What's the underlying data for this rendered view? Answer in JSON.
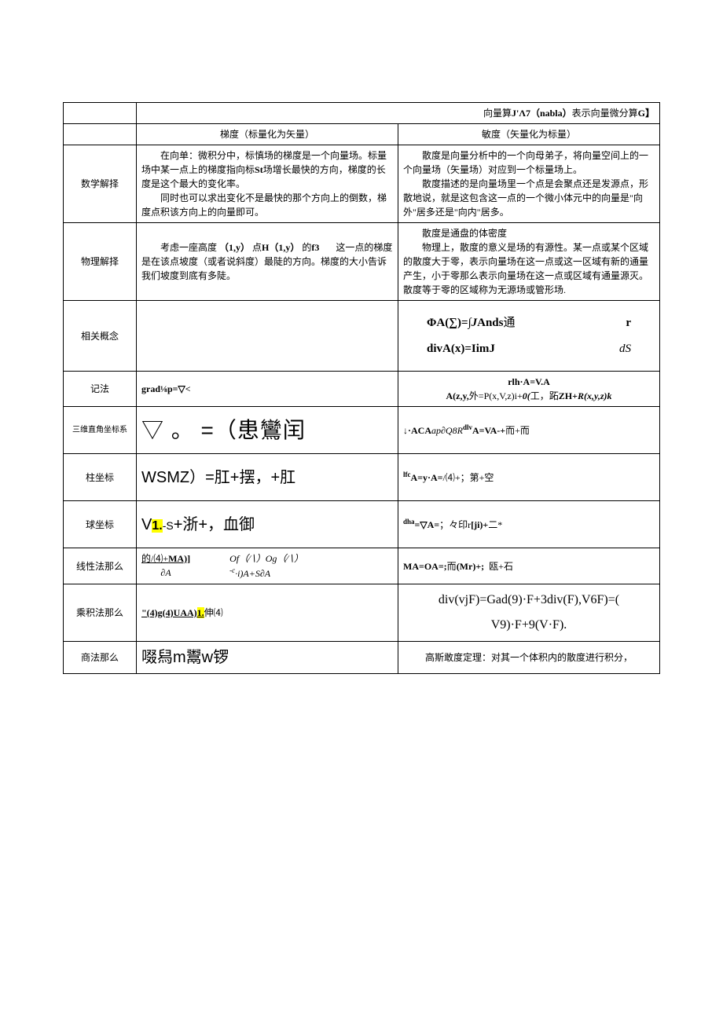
{
  "header": {
    "title_full": "向量算J'Λ7（nabla）表示向量微分算G】",
    "title_prefix": "向量算",
    "title_bold": "J'Λ7（nabla）",
    "title_suffix": "表示向量微分算",
    "title_tail": "G】",
    "col_left": "梯度（标量化为矢量）",
    "col_right": "敏度（矢量化为标量）"
  },
  "rows": {
    "math": {
      "label": "数学解择",
      "left_p1_pre": "在向单：微积分中，标慎场的梯度是一个向量场。标量场中某一点上的梯度指向标",
      "left_p1_bold": "St",
      "left_p1_post": "场增长最快的方向，梯度的长度是这个最大的变化率。",
      "left_p2": "同时也可以求出变化不是最快的那个方向上的倒数，梯度点积该方向上的向量即可。",
      "right_p1": "散度是向量分析中的一个向母弟子，将向量空间上的一个向量场（矢量场）对应到一个标量场上。",
      "right_p2": "散度描述的是向量场里一个点是会聚点还是发源点，形散地说，就是这包含这一点的一个微小体元中的向量是\"向外\"居多还是\"向内\"居多。"
    },
    "physics": {
      "label": "物理解择",
      "left_pre": "考虑一座高度",
      "left_b1": "（1,y）",
      "left_mid1": "点",
      "left_b2": "H（1,y）",
      "left_mid2": "的",
      "left_b3": "f3",
      "left_post": "这一点的梯度是在该点坡度（或者说斜度）最陡的方向。梯度的大小告诉我们坡度到底有多陡。",
      "right_p1": "散度是通盘的体密度",
      "right_p2": "物理上，散度的意义是场的有源性。某一点或某个区域的散度大于零，表示向量场在这一点或这一区域有新的通量产生，小于零那么表示向量场在这一点或区域有通量源灭。散度等于零的区域称为无源场或管形场."
    },
    "related": {
      "label": "相关概念",
      "right_line1_a": "ΦA(∑)=",
      "right_line1_b": "∫J",
      "right_line1_c": "Ands",
      "right_line1_d": "通",
      "right_line1_e": "r",
      "right_line2_a": "divA(x)=IimJ",
      "right_line2_b": "dS"
    },
    "notation": {
      "label": "记法",
      "left": "grad⅛p=▽<",
      "right_l1": "rlh·A=V.A",
      "right_l2_a": "A(z,y,",
      "right_l2_b": "外",
      "right_l2_c": "=P(x,V,z)i+",
      "right_l2_d": "0(",
      "right_l2_e": "工，跖",
      "right_l2_f": "ZH+",
      "right_l2_g": "R(x,y,z)k"
    },
    "cartesian": {
      "label": "三维直角坐标系",
      "left": "▽ 。 =（患鸞闰",
      "right_a": "↓·ACA",
      "right_b": "ap∂Q8R",
      "right_c": "dlv",
      "right_d": "A=VA-+",
      "right_e": "而+而"
    },
    "cylindrical": {
      "label": "柱坐标",
      "left": "WSMZ）=肛+摆，+肛",
      "right_a": "lfc",
      "right_b": "A=y·A=",
      "right_c": "/⑷+；第+空"
    },
    "spherical": {
      "label": "球坐标",
      "left_a": "V",
      "left_hl": "1.",
      "left_b": "-S",
      "left_c": "+浙+，血御",
      "right_a": "dha",
      "right_b": "=▽",
      "right_c": "A=",
      "right_d": "；々印r",
      "right_e": "[ji)+",
      "right_f": "二*"
    },
    "linear": {
      "label": "线性法那么",
      "left_u": "的/⑷+MA)]",
      "left_top": "Of（∕∖）Og（∕∖）",
      "left_bl": "∂A",
      "left_br_i": "-c·i)A+S∂A",
      "right_a": "MA=OA=;",
      "right_b": "而",
      "right_c": "(Mr)+;",
      "right_d": "瓯+石"
    },
    "product": {
      "label": "乘积法那么",
      "left_a": "\"(4)g(4)UAA)",
      "left_hl": "1.",
      "left_b": "伸⑷",
      "right_l1": "div(vjF)=Gad(9)·F+3div(F),V6F)=(",
      "right_l2": "V9)·F+9(V·F)."
    },
    "quotient": {
      "label": "商法那么",
      "left": "啜舄m鬻w锣",
      "right": "高斯敢度定理：对其一个体积内的散度进行积分，"
    }
  },
  "colors": {
    "highlight": "#ffff00",
    "border": "#000000",
    "background": "#ffffff",
    "text": "#000000"
  }
}
